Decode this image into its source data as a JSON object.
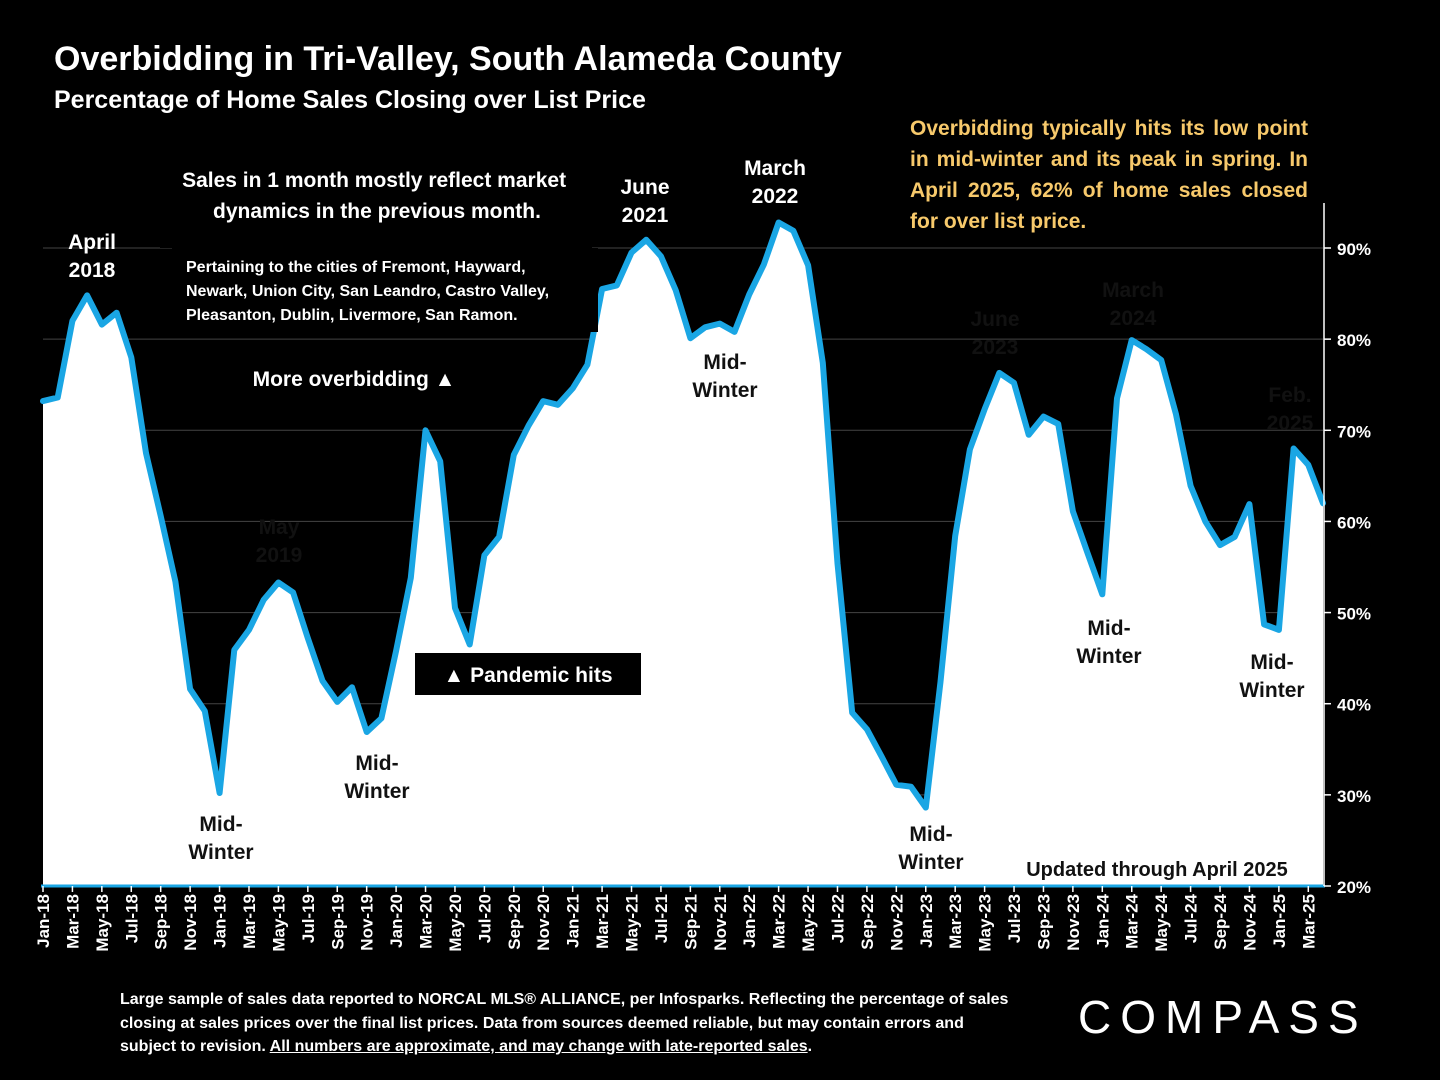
{
  "header": {
    "title": "Overbidding in Tri-Valley, South Alameda County",
    "subtitle": "Percentage of Home Sales Closing over List Price"
  },
  "notes": {
    "right": "Overbidding typically hits its low point in mid-winter and its peak in spring. In April 2025, 62% of home sales closed for over list price.",
    "lag": "Sales in 1 month mostly reflect market dynamics in the previous month.",
    "cities": "Pertaining to the cities of Fremont, Hayward, Newark, Union City, San Leandro, Castro Valley, Pleasanton, Dublin, Livermore, San Ramon.",
    "more_overbidding": "More overbidding ▲",
    "pandemic": "▲ Pandemic hits",
    "updated": "Updated through April 2025"
  },
  "footnote": {
    "text": "Large sample of sales data reported to NORCAL MLS® ALLIANCE, per Infosparks. Reflecting the percentage of sales closing at sales prices over the final list prices. Data from sources deemed reliable, but may contain errors and subject to revision. ",
    "underlined": "All numbers are approximate, and may change with late-reported sales",
    "end": "."
  },
  "logo": {
    "text": "COMPASS"
  },
  "colors": {
    "line": "#1aa6e4",
    "fill": "#ffffff",
    "background": "#000000",
    "note": "#f7c96b"
  },
  "chart_data": {
    "type": "area",
    "title": "Overbidding in Tri-Valley, South Alameda County",
    "subtitle": "Percentage of Home Sales Closing over List Price",
    "xlabel": "",
    "ylabel": "",
    "ylim": [
      20,
      95
    ],
    "yticks": [
      "20%",
      "30%",
      "40%",
      "50%",
      "60%",
      "70%",
      "80%",
      "90%"
    ],
    "ytick_values": [
      20,
      30,
      40,
      50,
      60,
      70,
      80,
      90
    ],
    "x_tick_labels": [
      "Jan-18",
      "Mar-18",
      "May-18",
      "Jul-18",
      "Sep-18",
      "Nov-18",
      "Jan-19",
      "Mar-19",
      "May-19",
      "Jul-19",
      "Sep-19",
      "Nov-19",
      "Jan-20",
      "Mar-20",
      "May-20",
      "Jul-20",
      "Sep-20",
      "Nov-20",
      "Jan-21",
      "Mar-21",
      "May-21",
      "Jul-21",
      "Sep-21",
      "Nov-21",
      "Jan-22",
      "Mar-22",
      "May-22",
      "Jul-22",
      "Sep-22",
      "Nov-22",
      "Jan-23",
      "Mar-23",
      "May-23",
      "Jul-23",
      "Sep-23",
      "Nov-23",
      "Jan-24",
      "Mar-24",
      "May-24",
      "Jul-24",
      "Sep-24",
      "Nov-24",
      "Jan-25",
      "Mar-25"
    ],
    "series": [
      {
        "values": [
          73.2,
          73.6,
          82.0,
          84.8,
          81.6,
          82.9,
          78.0,
          67.5,
          60.6,
          53.4,
          41.6,
          39.2,
          30.2,
          45.9,
          48.1,
          51.4,
          53.3,
          52.2,
          47.2,
          42.5,
          40.2,
          41.8,
          36.9,
          38.4,
          45.8,
          53.8,
          70.0,
          66.6,
          50.5,
          46.5,
          56.3,
          58.3,
          67.3,
          70.5,
          73.2,
          72.8,
          74.6,
          77.2,
          85.5,
          85.9,
          89.5,
          90.9,
          89.1,
          85.4,
          80.1,
          81.3,
          81.7,
          80.8,
          84.9,
          88.2,
          92.8,
          91.9,
          88.1,
          77.4,
          55.4,
          39.0,
          37.2,
          34.2,
          31.1,
          30.9,
          28.6,
          42.4,
          58.4,
          67.9,
          72.3,
          76.3,
          75.2,
          69.5,
          71.5,
          70.7,
          61.1,
          56.5,
          52.0,
          73.5,
          79.9,
          78.9,
          77.7,
          71.8,
          63.9,
          60.0,
          57.4,
          58.3,
          61.9,
          48.7,
          48.1,
          68.0,
          66.2,
          62.0
        ]
      }
    ],
    "annotations": [
      {
        "text": [
          "April",
          "2018"
        ]
      },
      {
        "text": [
          "May",
          "2019"
        ]
      },
      {
        "text": [
          "June",
          "2021"
        ]
      },
      {
        "text": [
          "March",
          "2022"
        ]
      },
      {
        "text": [
          "June",
          "2023"
        ]
      },
      {
        "text": [
          "March",
          "2024"
        ]
      },
      {
        "text": [
          "Feb.",
          "2025"
        ]
      },
      {
        "text": [
          "Mid-",
          "Winter"
        ]
      },
      {
        "text": [
          "Mid-",
          "Winter"
        ]
      },
      {
        "text": [
          "Mid-",
          "Winter"
        ]
      },
      {
        "text": [
          "Mid-",
          "Winter"
        ]
      },
      {
        "text": [
          "Mid-",
          "Winter"
        ]
      },
      {
        "text": [
          "Mid-",
          "Winter"
        ]
      }
    ],
    "grid": true,
    "legend": "none"
  }
}
